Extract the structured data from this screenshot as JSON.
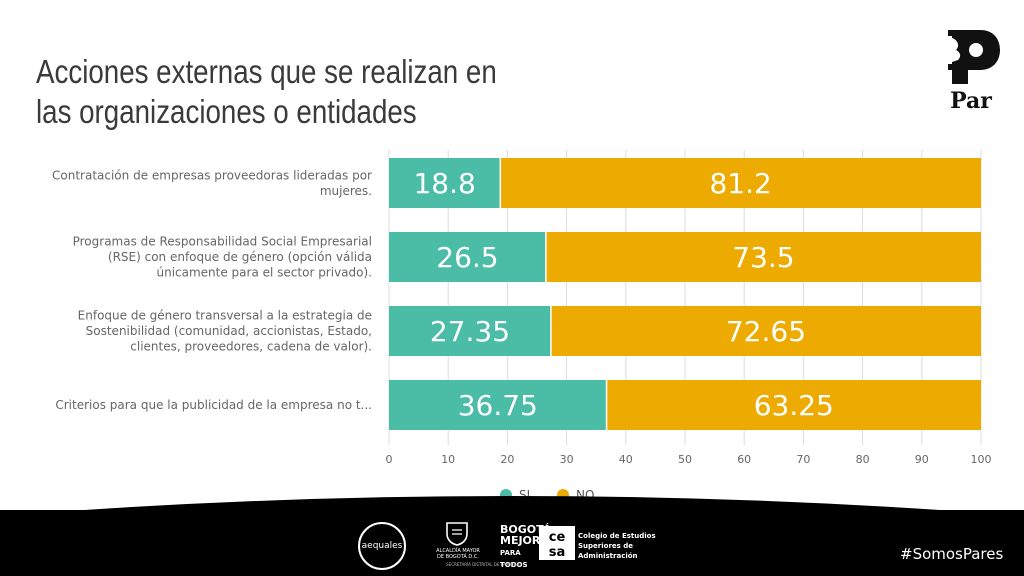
{
  "slide": {
    "title_line1": "Acciones externas que se realizan en",
    "title_line2": "las organizaciones o entidades",
    "logo_text": "Par",
    "hashtag": "#SomosPares"
  },
  "sponsors": {
    "aequales": "aequales",
    "alcaldia_line1": "ALCALDÍA MAYOR",
    "alcaldia_line2": "DE BOGOTÁ D.C.",
    "bogota_line1": "BOGOTÁ",
    "bogota_line2": "MEJOR",
    "bogota_line3": "PARA TODOS",
    "bogota_sub": "SECRETARÍA DISTRITAL DE LA MUJER",
    "cesa_mark": "cesa",
    "cesa_line1": "Colegio de Estudios",
    "cesa_line2": "Superiores de Administración"
  },
  "colors": {
    "si": "#4bbca6",
    "no": "#edab02",
    "grid": "#dcdcdc"
  },
  "chart_data": {
    "type": "bar",
    "orientation": "horizontal",
    "stacked": true,
    "categories": [
      [
        "Contratación de empresas proveedoras lideradas por",
        "mujeres."
      ],
      [
        "Programas de Responsabilidad Social Empresarial",
        "(RSE) con enfoque de género (opción válida",
        "únicamente para el sector privado)."
      ],
      [
        "Enfoque de género transversal a la estrategia de",
        "Sostenibilidad (comunidad, accionistas, Estado,",
        "clientes, proveedores, cadena de valor)."
      ],
      [
        "Criterios para que la publicidad de la empresa no t..."
      ]
    ],
    "series": [
      {
        "name": "SI",
        "values": [
          18.8,
          26.5,
          27.35,
          36.75
        ]
      },
      {
        "name": "NO",
        "values": [
          81.2,
          73.5,
          72.65,
          63.25
        ]
      }
    ],
    "xlim": [
      0,
      100
    ],
    "xticks": [
      0,
      10,
      20,
      30,
      40,
      50,
      60,
      70,
      80,
      90,
      100
    ],
    "grid": true,
    "legend_position": "bottom"
  }
}
